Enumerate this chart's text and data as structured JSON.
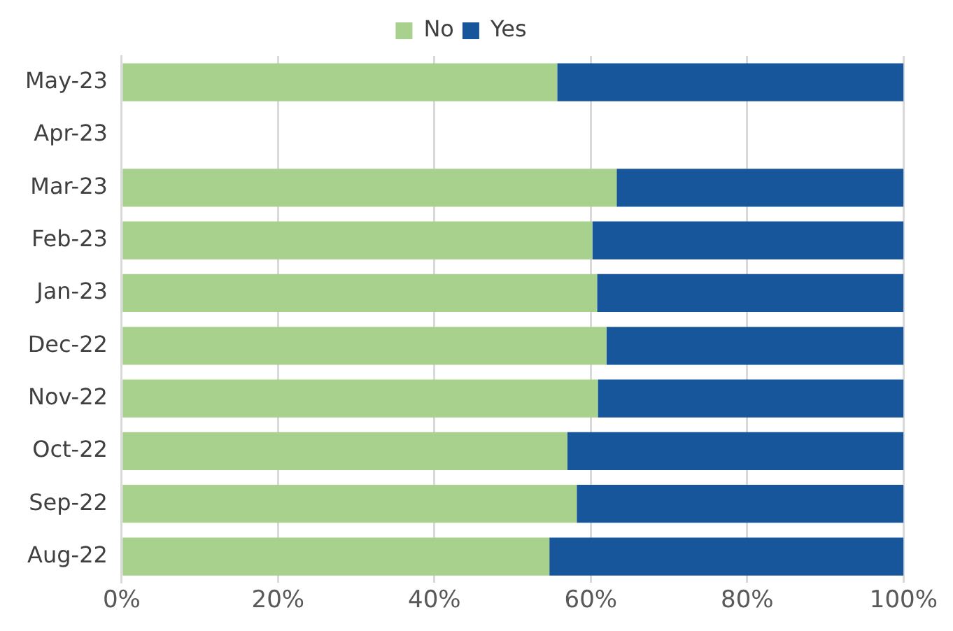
{
  "chart_data": {
    "type": "bar",
    "orientation": "horizontal",
    "stacked": true,
    "categories": [
      "May-23",
      "Apr-23",
      "Mar-23",
      "Feb-23",
      "Jan-23",
      "Dec-22",
      "Nov-22",
      "Oct-22",
      "Sep-22",
      "Aug-22"
    ],
    "series": [
      {
        "name": "No",
        "color": "#a9d18e",
        "values": [
          55.7,
          null,
          63.3,
          60.2,
          60.8,
          62.0,
          60.9,
          57.0,
          58.2,
          54.7
        ]
      },
      {
        "name": "Yes",
        "color": "#17569b",
        "values": [
          44.3,
          null,
          36.7,
          39.8,
          39.2,
          38.0,
          39.1,
          43.0,
          41.8,
          45.3
        ]
      }
    ],
    "xlim": [
      0,
      100
    ],
    "xticks": [
      {
        "value": 0,
        "label": "0%"
      },
      {
        "value": 20,
        "label": "20%"
      },
      {
        "value": 40,
        "label": "40%"
      },
      {
        "value": 60,
        "label": "60%"
      },
      {
        "value": 80,
        "label": "80%"
      },
      {
        "value": 100,
        "label": "100%"
      }
    ],
    "grid": "x",
    "legend": "top"
  }
}
